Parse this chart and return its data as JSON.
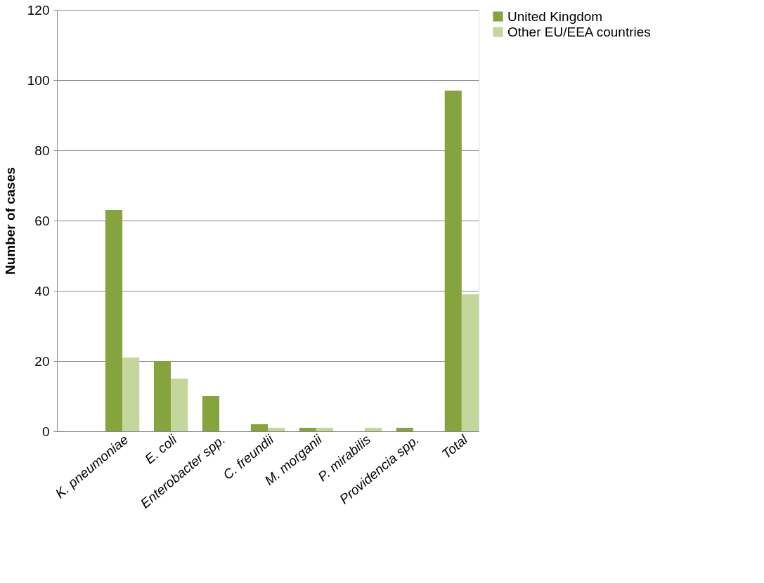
{
  "chart_data": {
    "type": "bar",
    "ylabel": "Number of cases",
    "categories": [
      null,
      "K. pneumoniae",
      "E. coli",
      "Enterobacter spp.",
      "C. freundii",
      "M. morganii",
      "P. mirabilis",
      "Providencia spp.",
      "Total"
    ],
    "series": [
      {
        "name": "United Kingdom",
        "color": "#86a43e",
        "values": [
          null,
          63,
          20,
          10,
          2,
          1,
          null,
          1,
          97
        ]
      },
      {
        "name": "Other  EU/EEA countries",
        "color": "#c3d69b",
        "values": [
          null,
          21,
          15,
          null,
          1,
          1,
          1,
          null,
          39
        ]
      }
    ],
    "ylim": [
      0,
      120
    ],
    "yticks": [
      0,
      20,
      40,
      60,
      80,
      100,
      120
    ],
    "grid": "y",
    "legend": "right"
  }
}
